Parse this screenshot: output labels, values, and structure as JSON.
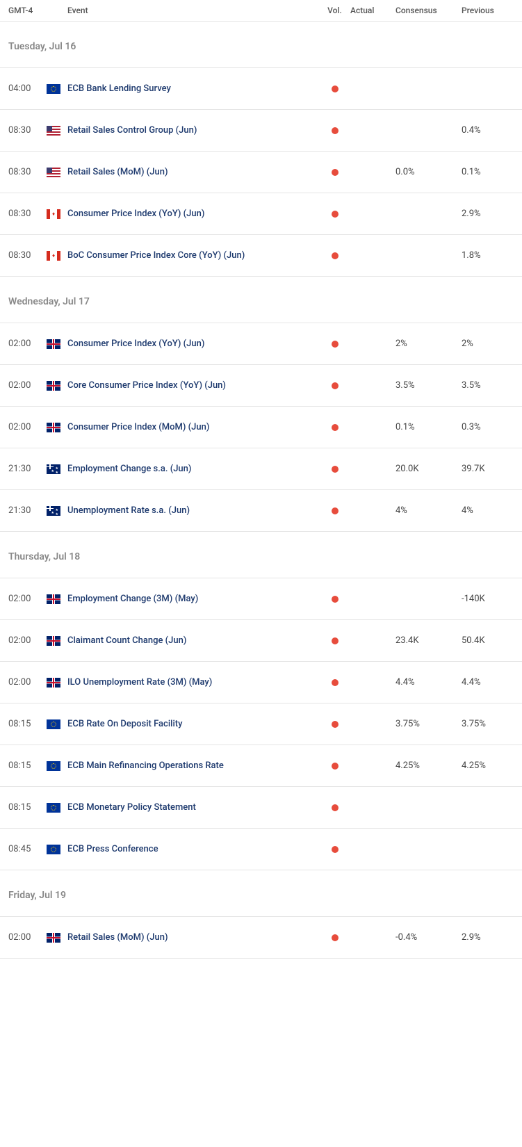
{
  "header": {
    "tz": "GMT-4",
    "event": "Event",
    "vol": "Vol.",
    "actual": "Actual",
    "consensus": "Consensus",
    "previous": "Previous"
  },
  "days": [
    {
      "label": "Tuesday, Jul 16",
      "events": [
        {
          "time": "04:00",
          "flag": "eu",
          "name": "ECB Bank Lending Survey",
          "vol": "high",
          "actual": "",
          "consensus": "",
          "previous": ""
        },
        {
          "time": "08:30",
          "flag": "us",
          "name": "Retail Sales Control Group (Jun)",
          "vol": "high",
          "actual": "",
          "consensus": "",
          "previous": "0.4%"
        },
        {
          "time": "08:30",
          "flag": "us",
          "name": "Retail Sales (MoM) (Jun)",
          "vol": "high",
          "actual": "",
          "consensus": "0.0%",
          "previous": "0.1%"
        },
        {
          "time": "08:30",
          "flag": "ca",
          "name": "Consumer Price Index (YoY) (Jun)",
          "vol": "high",
          "actual": "",
          "consensus": "",
          "previous": "2.9%"
        },
        {
          "time": "08:30",
          "flag": "ca",
          "name": "BoC Consumer Price Index Core (YoY) (Jun)",
          "vol": "high",
          "actual": "",
          "consensus": "",
          "previous": "1.8%"
        }
      ]
    },
    {
      "label": "Wednesday, Jul 17",
      "events": [
        {
          "time": "02:00",
          "flag": "gb",
          "name": "Consumer Price Index (YoY) (Jun)",
          "vol": "high",
          "actual": "",
          "consensus": "2%",
          "previous": "2%"
        },
        {
          "time": "02:00",
          "flag": "gb",
          "name": "Core Consumer Price Index (YoY) (Jun)",
          "vol": "high",
          "actual": "",
          "consensus": "3.5%",
          "previous": "3.5%"
        },
        {
          "time": "02:00",
          "flag": "gb",
          "name": "Consumer Price Index (MoM) (Jun)",
          "vol": "high",
          "actual": "",
          "consensus": "0.1%",
          "previous": "0.3%"
        },
        {
          "time": "21:30",
          "flag": "au",
          "name": "Employment Change s.a. (Jun)",
          "vol": "high",
          "actual": "",
          "consensus": "20.0K",
          "previous": "39.7K"
        },
        {
          "time": "21:30",
          "flag": "au",
          "name": "Unemployment Rate s.a. (Jun)",
          "vol": "high",
          "actual": "",
          "consensus": "4%",
          "previous": "4%"
        }
      ]
    },
    {
      "label": "Thursday, Jul 18",
      "events": [
        {
          "time": "02:00",
          "flag": "gb",
          "name": "Employment Change (3M) (May)",
          "vol": "high",
          "actual": "",
          "consensus": "",
          "previous": "-140K"
        },
        {
          "time": "02:00",
          "flag": "gb",
          "name": "Claimant Count Change (Jun)",
          "vol": "high",
          "actual": "",
          "consensus": "23.4K",
          "previous": "50.4K"
        },
        {
          "time": "02:00",
          "flag": "gb",
          "name": "ILO Unemployment Rate (3M) (May)",
          "vol": "high",
          "actual": "",
          "consensus": "4.4%",
          "previous": "4.4%"
        },
        {
          "time": "08:15",
          "flag": "eu",
          "name": "ECB Rate On Deposit Facility",
          "vol": "high",
          "actual": "",
          "consensus": "3.75%",
          "previous": "3.75%"
        },
        {
          "time": "08:15",
          "flag": "eu",
          "name": "ECB Main Refinancing Operations Rate",
          "vol": "high",
          "actual": "",
          "consensus": "4.25%",
          "previous": "4.25%"
        },
        {
          "time": "08:15",
          "flag": "eu",
          "name": "ECB Monetary Policy Statement",
          "vol": "high",
          "actual": "",
          "consensus": "",
          "previous": ""
        },
        {
          "time": "08:45",
          "flag": "eu",
          "name": "ECB Press Conference",
          "vol": "high",
          "actual": "",
          "consensus": "",
          "previous": ""
        }
      ]
    },
    {
      "label": "Friday, Jul 19",
      "events": [
        {
          "time": "02:00",
          "flag": "gb",
          "name": "Retail Sales (MoM) (Jun)",
          "vol": "high",
          "actual": "",
          "consensus": "-0.4%",
          "previous": "2.9%"
        }
      ]
    }
  ],
  "colors": {
    "vol_high": "#e74c3c",
    "event_link": "#1e3a6e",
    "border": "#e5e5e5",
    "day_header_text": "#888888"
  }
}
